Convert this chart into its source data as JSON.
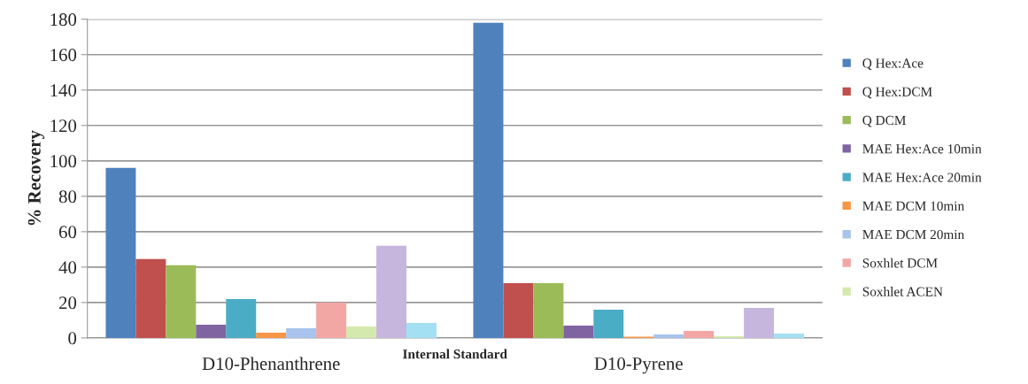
{
  "chart_data": {
    "type": "bar",
    "xlabel": "Internal Standard",
    "ylabel": "% Recovery",
    "categories": [
      "D10-Phenanthrene",
      "D10-Pyrene"
    ],
    "series": [
      {
        "name": "Q Hex:Ace",
        "color": "#4f81bd",
        "values": [
          96,
          178
        ]
      },
      {
        "name": "Q Hex:DCM",
        "color": "#c0504d",
        "values": [
          44.5,
          31
        ]
      },
      {
        "name": "Q DCM",
        "color": "#9bbb59",
        "values": [
          41,
          31
        ]
      },
      {
        "name": "MAE Hex:Ace 10min",
        "color": "#8064a2",
        "values": [
          7.5,
          7
        ]
      },
      {
        "name": "MAE Hex:Ace 20min",
        "color": "#4bacc6",
        "values": [
          22,
          16
        ]
      },
      {
        "name": "MAE DCM 10min",
        "color": "#f79646",
        "values": [
          3,
          0.7
        ]
      },
      {
        "name": "MAE DCM 20min",
        "color": "#a7c3ee",
        "values": [
          5.5,
          2
        ]
      },
      {
        "name": "Soxhlet DCM",
        "color": "#f2a7a5",
        "values": [
          20,
          4
        ]
      },
      {
        "name": "Soxhlet ACEN",
        "color": "#d4e9ad",
        "values": [
          6.5,
          1
        ]
      },
      {
        "color": "#c6b5dd",
        "values": [
          52,
          17
        ]
      },
      {
        "color": "#a3e0f3",
        "values": [
          8.5,
          2.5
        ]
      }
    ],
    "ylim": [
      0,
      180
    ],
    "yticks": [
      0,
      20,
      40,
      60,
      80,
      100,
      120,
      140,
      160,
      180
    ],
    "grid": "y",
    "legend": "right"
  }
}
